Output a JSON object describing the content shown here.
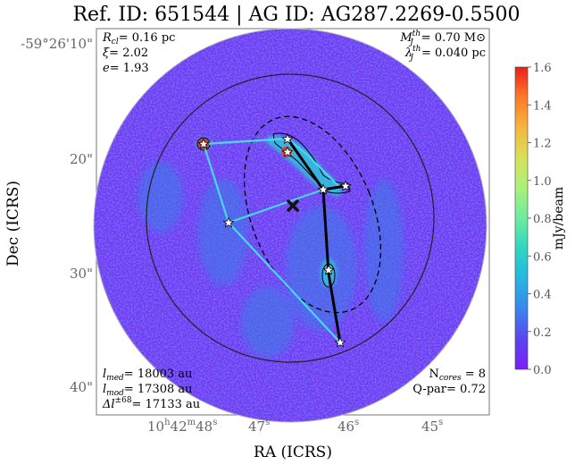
{
  "title": "Ref. ID: 651544 | AG ID: AG287.2269-0.5500",
  "params_left": [
    {
      "sym": "R",
      "sub": "cl",
      "val": "= 0.16 pc"
    },
    {
      "sym": "ξ",
      "sub": "",
      "val": "= 2.02"
    },
    {
      "sym": "e",
      "sub": "",
      "val": "= 1.93"
    }
  ],
  "params_right": [
    {
      "sym": "M",
      "sub": "J",
      "sup": "th",
      "val": "= 0.70 M",
      "tail": "⊙"
    },
    {
      "sym": "λ",
      "sub": "J",
      "sup": "th",
      "val": "= 0.040 pc",
      "tail": ""
    }
  ],
  "stats_left": [
    {
      "sym": "l",
      "sub": "med",
      "sup": "",
      "val": "= 18003 au"
    },
    {
      "sym": "l",
      "sub": "mod",
      "sup": "",
      "val": "= 17308 au"
    },
    {
      "sym": "Δl",
      "sub": "",
      "sup": "±68",
      "val": "= 17133 au"
    }
  ],
  "stats_right": [
    "N",
    "cores",
    " = 8",
    "Q-par= 0.72"
  ],
  "axes": {
    "xlabel": "RA (ICRS)",
    "ylabel": "Dec (ICRS)",
    "x_ticks": [
      {
        "h": "10",
        "hs": "h",
        "m": "42",
        "ms": "m",
        "s": "48",
        "ss": "s"
      },
      {
        "h": "",
        "hs": "",
        "m": "",
        "ms": "",
        "s": "47",
        "ss": "s"
      },
      {
        "h": "",
        "hs": "",
        "m": "",
        "ms": "",
        "s": "46",
        "ss": "s"
      },
      {
        "h": "",
        "hs": "",
        "m": "",
        "ms": "",
        "s": "45",
        "ss": "s"
      }
    ],
    "y_ticks": [
      "-59°26'10\"",
      "20\"",
      "30\"",
      "40\""
    ]
  },
  "colorbar": {
    "label": "mJy/beam",
    "min": 0.0,
    "max": 1.6,
    "ticks": [
      "0.0",
      "0.2",
      "0.4",
      "0.6",
      "0.8",
      "1.0",
      "1.2",
      "1.4",
      "1.6"
    ],
    "colors": [
      "#7b1ff5",
      "#5a46f0",
      "#3a86ec",
      "#26b6e0",
      "#2ed6c2",
      "#6cec9e",
      "#a9f27a",
      "#d8e05a",
      "#f5b63e",
      "#ff7a28",
      "#e9201a"
    ]
  },
  "colors": {
    "background_map": "#6a3ff0",
    "mst_line": "#000000",
    "secondary_line": "#45d8e8",
    "center_marker": "#111111"
  }
}
